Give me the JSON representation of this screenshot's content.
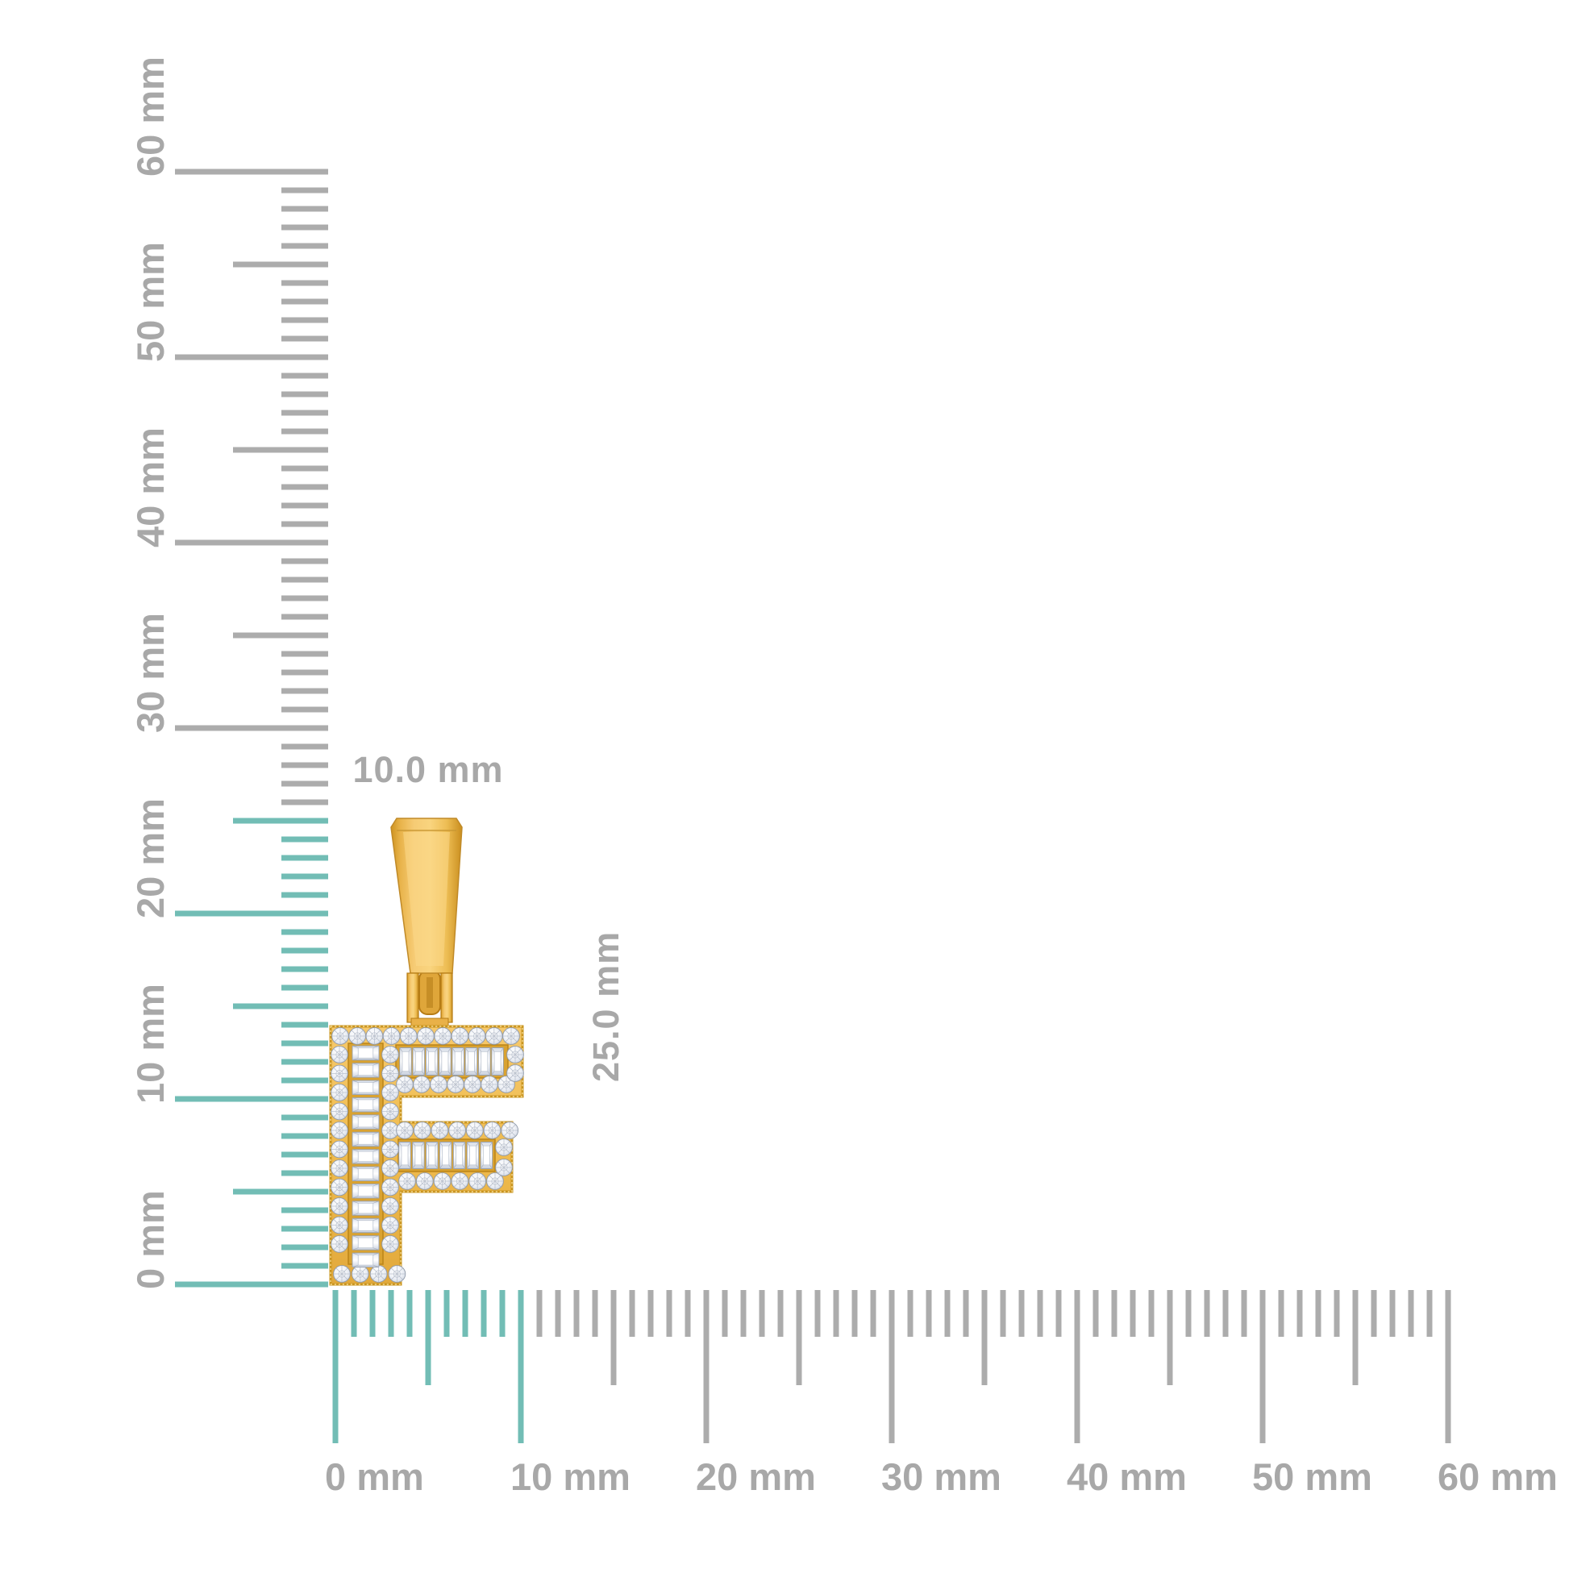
{
  "scene": {
    "background_color": "#FFFFFF",
    "description": "Yellow-gold initial letter F diamond pendant photographed against millimetre scale rulers"
  },
  "dimensions": {
    "width_label": "10.0 mm",
    "height_label": "25.0 mm"
  },
  "rulers": {
    "unit": "mm",
    "vertical": {
      "min_mm": 0,
      "max_mm": 60,
      "major_step_mm": 10,
      "mid_step_mm": 5,
      "minor_step_mm": 1,
      "highlighted_span_mm": [
        0,
        25
      ],
      "labels": [
        "0 mm",
        "10 mm",
        "20 mm",
        "30 mm",
        "40 mm",
        "50 mm",
        "60 mm"
      ]
    },
    "horizontal": {
      "min_mm": 0,
      "max_mm": 60,
      "major_step_mm": 10,
      "mid_step_mm": 5,
      "minor_step_mm": 1,
      "highlighted_span_mm": [
        0,
        10
      ],
      "labels": [
        "0 mm",
        "10 mm",
        "20 mm",
        "30 mm",
        "40 mm",
        "50 mm",
        "60 mm"
      ]
    }
  },
  "colors": {
    "highlight_teal": "#72BDB5",
    "tick_gray": "#ACACAC",
    "label_gray": "#A8A8A8",
    "gold_light": "#F9D47F",
    "gold_mid": "#EFBB4E",
    "gold_dark": "#C98E1E",
    "gold_line": "#BB8418",
    "diamond_white": "#FFFFFF",
    "diamond_shade": "#BFC7D4",
    "diamond_edge": "#8E98A8"
  },
  "pendant": {
    "letter": "F",
    "metal": "yellow gold",
    "has_bail": true,
    "stones": {
      "round_total": 61,
      "baguette_total": 28,
      "rows": {
        "top_edge_rounds": 11,
        "top_arm_baguettes": 8,
        "top_arm_lower_rounds": 7,
        "top_arm_end_rounds": 2,
        "stem_left_rounds": 11,
        "stem_right_rounds": 11,
        "stem_baguettes": 13,
        "stem_bottom_rounds": 4,
        "mid_arm_upper_rounds": 7,
        "mid_arm_baguettes": 7,
        "mid_arm_lower_rounds": 6,
        "mid_arm_end_rounds": 2
      }
    }
  }
}
